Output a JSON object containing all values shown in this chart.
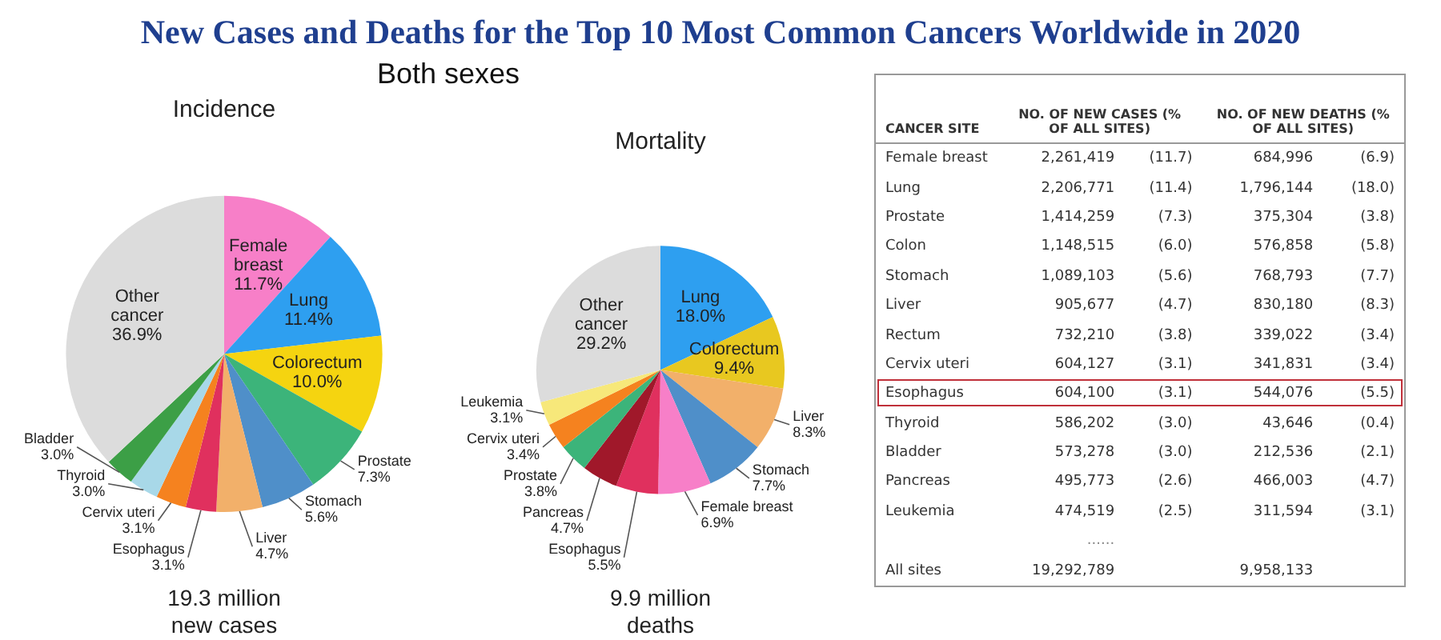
{
  "chart_data": [
    {
      "type": "other",
      "title": "New Cases and Deaths for the Top 10 Most Common Cancers Worldwide in 2020",
      "subtitle": "Both sexes"
    },
    {
      "type": "pie",
      "title": "Incidence",
      "subtitle": "19.3 million new cases",
      "categories": [
        "Female breast",
        "Lung",
        "Colorectum",
        "Prostate",
        "Stomach",
        "Liver",
        "Esophagus",
        "Cervix uteri",
        "Thyroid",
        "Bladder",
        "Other cancer"
      ],
      "values": [
        11.7,
        11.4,
        10.0,
        7.3,
        5.6,
        4.7,
        3.1,
        3.1,
        3.0,
        3.0,
        36.9
      ],
      "value_labels": [
        "11.7%",
        "11.4%",
        "10.0%",
        "7.3%",
        "5.6%",
        "4.7%",
        "3.1%",
        "3.1%",
        "3.0%",
        "3.0%",
        "36.9%"
      ],
      "colors": [
        "#f77fc8",
        "#2e9ff0",
        "#f5d410",
        "#3cb47a",
        "#4f8fc9",
        "#f2b06a",
        "#e0305e",
        "#f5821f",
        "#a8d8e8",
        "#3c9f46",
        "#dcdcdc"
      ]
    },
    {
      "type": "pie",
      "title": "Mortality",
      "subtitle": "9.9 million deaths",
      "categories": [
        "Lung",
        "Colorectum",
        "Liver",
        "Stomach",
        "Female breast",
        "Esophagus",
        "Pancreas",
        "Prostate",
        "Cervix uteri",
        "Leukemia",
        "Other cancer"
      ],
      "values": [
        18.0,
        9.4,
        8.3,
        7.7,
        6.9,
        5.5,
        4.7,
        3.8,
        3.4,
        3.1,
        29.2
      ],
      "value_labels": [
        "18.0%",
        "9.4%",
        "8.3%",
        "7.7%",
        "6.9%",
        "5.5%",
        "4.7%",
        "3.8%",
        "3.4%",
        "3.1%",
        "29.2%"
      ],
      "colors": [
        "#2e9ff0",
        "#e8c820",
        "#f2b06a",
        "#4f8fc9",
        "#f77fc8",
        "#e0305e",
        "#a0182a",
        "#3cb47a",
        "#f5821f",
        "#f7e87a",
        "#dcdcdc"
      ]
    },
    {
      "type": "other",
      "xlabel": "CANCER SITE",
      "categories": [
        "Female breast",
        "Lung",
        "Prostate",
        "Colon",
        "Stomach",
        "Liver",
        "Rectum",
        "Cervix uteri",
        "Esophagus",
        "Thyroid",
        "Bladder",
        "Pancreas",
        "Leukemia",
        "All sites"
      ],
      "series": [
        {
          "name": "NO. OF NEW CASES (% OF ALL SITES)",
          "values": [
            2261419,
            2206771,
            1414259,
            1148515,
            1089103,
            905677,
            732210,
            604127,
            604100,
            586202,
            573278,
            495773,
            474519,
            19292789
          ],
          "value_labels": [
            "2,261,419",
            "2,206,771",
            "1,414,259",
            "1,148,515",
            "1,089,103",
            "905,677",
            "732,210",
            "604,127",
            "604,100",
            "586,202",
            "573,278",
            "495,773",
            "474,519",
            "19,292,789"
          ]
        },
        {
          "values": [
            11.7,
            11.4,
            7.3,
            6.0,
            5.6,
            4.7,
            3.8,
            3.1,
            3.1,
            3.0,
            3.0,
            2.6,
            2.5,
            null
          ],
          "value_labels": [
            "(11.7)",
            "(11.4)",
            "(7.3)",
            "(6.0)",
            "(5.6)",
            "(4.7)",
            "(3.8)",
            "(3.1)",
            "(3.1)",
            "(3.0)",
            "(3.0)",
            "(2.6)",
            "(2.5)",
            null
          ]
        },
        {
          "name": "NO. OF NEW DEATHS (% OF ALL SITES)",
          "values": [
            684996,
            1796144,
            375304,
            576858,
            768793,
            830180,
            339022,
            341831,
            544076,
            43646,
            212536,
            466003,
            311594,
            9958133
          ],
          "value_labels": [
            "684,996",
            "1,796,144",
            "375,304",
            "576,858",
            "768,793",
            "830,180",
            "339,022",
            "341,831",
            "544,076",
            "43,646",
            "212,536",
            "466,003",
            "311,594",
            "9,958,133"
          ]
        },
        {
          "values": [
            6.9,
            18.0,
            3.8,
            5.8,
            7.7,
            8.3,
            3.4,
            3.4,
            5.5,
            0.4,
            2.1,
            4.7,
            3.1,
            null
          ],
          "value_labels": [
            "(6.9)",
            "(18.0)",
            "(3.8)",
            "(5.8)",
            "(7.7)",
            "(8.3)",
            "(3.4)",
            "(3.4)",
            "(5.5)",
            "(0.4)",
            "(2.1)",
            "(4.7)",
            "(3.1)",
            null
          ]
        }
      ],
      "annotations": [
        "......"
      ]
    }
  ]
}
